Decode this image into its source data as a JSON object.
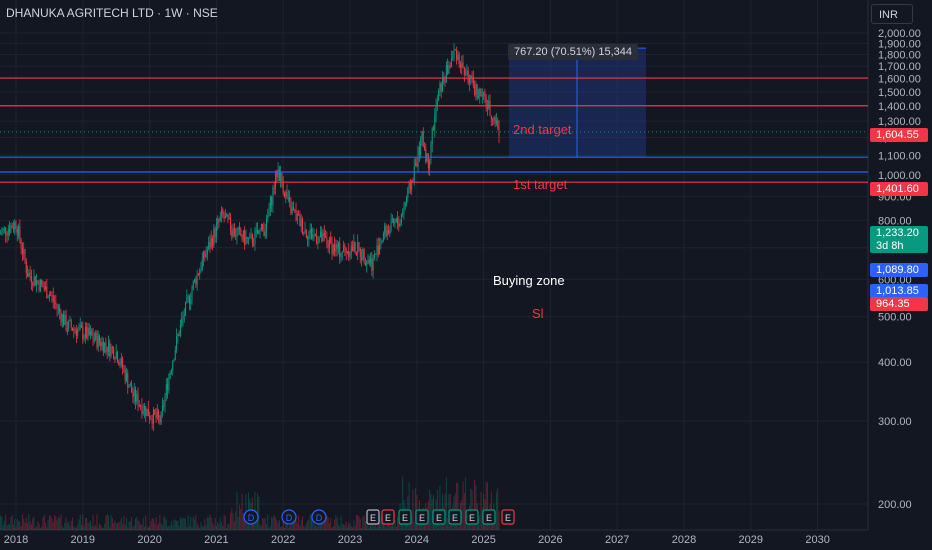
{
  "header": {
    "symbol_title": "DHANUKA AGRITECH LTD · 1W · NSE",
    "currency": "INR"
  },
  "colors": {
    "background": "#131722",
    "up": "#089981",
    "down": "#f23645",
    "target_line": "#f23645",
    "zone_line": "#2962ff",
    "measure_fill": "#1e3a8a"
  },
  "y_axis": {
    "ticks": [
      2000,
      1900,
      1800,
      1700,
      1600,
      1500,
      1400,
      1300,
      1200,
      1100,
      1000,
      900,
      800,
      700,
      600,
      500,
      400,
      300,
      200
    ],
    "labels": [
      "2,000.00",
      "1,900.00",
      "1,800.00",
      "1,700.00",
      "1,600.00",
      "1,500.00",
      "1,400.00",
      "1,300.00",
      "1,200.00",
      "1,100.00",
      "1,000.00",
      "900.00",
      "800.00",
      "700.00",
      "600.00",
      "500.00",
      "400.00",
      "300.00",
      "200.00"
    ]
  },
  "x_axis": {
    "labels": [
      "2018",
      "2019",
      "2020",
      "2021",
      "2022",
      "2023",
      "2024",
      "2025",
      "2026",
      "2027",
      "2028",
      "2029",
      "2030"
    ]
  },
  "price_lines": [
    {
      "label": "1,604.55",
      "value": 1604.55,
      "color": "#f23645"
    },
    {
      "label": "1,401.60",
      "value": 1401.6,
      "color": "#f23645"
    },
    {
      "label": "1,089.80",
      "value": 1089.8,
      "color": "#2962ff"
    },
    {
      "label": "1,013.85",
      "value": 1013.85,
      "color": "#2962ff"
    },
    {
      "label": "964.35",
      "value": 964.35,
      "color": "#f23645"
    }
  ],
  "current_price": {
    "label": "1,233.20",
    "countdown": "3d 8h",
    "value": 1233.2
  },
  "annotations": {
    "second_target": "2nd target",
    "first_target": "1st target",
    "buying_zone": "Buying zone",
    "stop_loss": "Sl"
  },
  "measure_tool": {
    "tooltip": "767.20 (70.51%) 15,344",
    "from": 1089.8,
    "to": 1857
  },
  "event_markers": [
    {
      "label": "D",
      "kind": "dividend"
    },
    {
      "label": "D",
      "kind": "dividend"
    },
    {
      "label": "D",
      "kind": "dividend"
    },
    {
      "label": "E",
      "kind": "earnings"
    },
    {
      "label": "E",
      "kind": "earnings"
    },
    {
      "label": "E",
      "kind": "earnings"
    },
    {
      "label": "E",
      "kind": "earnings"
    },
    {
      "label": "E",
      "kind": "earnings"
    },
    {
      "label": "E",
      "kind": "earnings"
    },
    {
      "label": "E",
      "kind": "earnings"
    },
    {
      "label": "E",
      "kind": "earnings"
    },
    {
      "label": "E",
      "kind": "earnings"
    }
  ],
  "chart_data": {
    "type": "candlestick",
    "x_range": [
      "2017-09",
      "2030-06"
    ],
    "y_scale": "log",
    "ylim": [
      180,
      2080
    ],
    "series_close": [
      [
        "2017-10",
        750
      ],
      [
        "2018-01",
        790
      ],
      [
        "2018-03",
        620
      ],
      [
        "2018-07",
        560
      ],
      [
        "2018-10",
        480
      ],
      [
        "2019-03",
        450
      ],
      [
        "2019-07",
        420
      ],
      [
        "2019-10",
        340
      ],
      [
        "2020-01",
        310
      ],
      [
        "2020-03",
        300
      ],
      [
        "2020-06",
        450
      ],
      [
        "2020-09",
        590
      ],
      [
        "2020-12",
        720
      ],
      [
        "2021-02",
        820
      ],
      [
        "2021-04",
        760
      ],
      [
        "2021-07",
        720
      ],
      [
        "2021-10",
        780
      ],
      [
        "2021-12",
        1030
      ],
      [
        "2022-02",
        860
      ],
      [
        "2022-05",
        760
      ],
      [
        "2022-08",
        730
      ],
      [
        "2022-11",
        690
      ],
      [
        "2023-02",
        700
      ],
      [
        "2023-05",
        650
      ],
      [
        "2023-07",
        750
      ],
      [
        "2023-10",
        800
      ],
      [
        "2023-12",
        960
      ],
      [
        "2024-02",
        1200
      ],
      [
        "2024-03",
        1050
      ],
      [
        "2024-05",
        1500
      ],
      [
        "2024-08",
        1840
      ],
      [
        "2024-09",
        1700
      ],
      [
        "2024-11",
        1550
      ],
      [
        "2025-01",
        1450
      ],
      [
        "2025-02",
        1380
      ],
      [
        "2025-04",
        1233
      ]
    ]
  }
}
